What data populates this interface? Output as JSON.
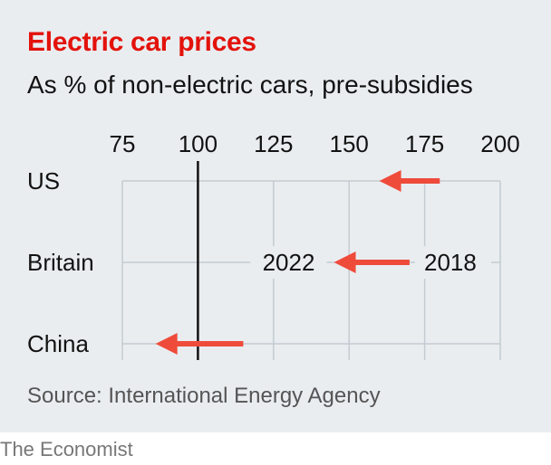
{
  "title": "Electric car prices",
  "subtitle": "As % of non-electric cars, pre-subsidies",
  "source": "Source: International Energy Agency",
  "brand": "The Economist",
  "colors": {
    "title": "#e3120b",
    "arrow": "#ef4b3b",
    "background": "#e9edf0",
    "grid": "#c4cbd1",
    "reference_line": "#121212"
  },
  "chart_data": {
    "type": "arrow-dot",
    "title": "Electric car prices",
    "subtitle": "As % of non-electric cars, pre-subsidies",
    "x_ticks": [
      75,
      100,
      125,
      150,
      175,
      200
    ],
    "xlim": [
      75,
      200
    ],
    "reference_line": 100,
    "grid": true,
    "categories": [
      "US",
      "Britain",
      "China"
    ],
    "series": [
      {
        "name": "2018",
        "values": [
          180,
          170,
          115
        ]
      },
      {
        "name": "2022",
        "values": [
          160,
          145,
          86
        ]
      }
    ],
    "annotations": {
      "start_label": "2018",
      "end_label": "2022",
      "row": "Britain"
    }
  }
}
